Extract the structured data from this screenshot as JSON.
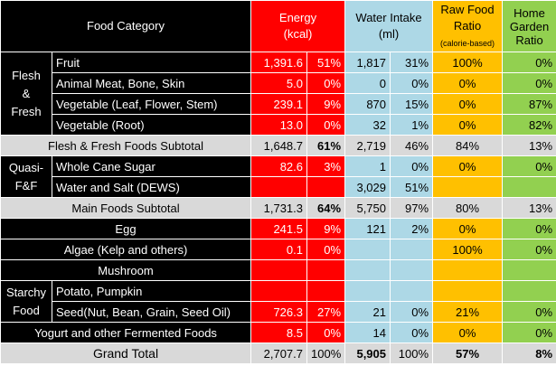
{
  "header": {
    "food_category": "Food Category",
    "energy_1": "Energy",
    "energy_2": "(kcal)",
    "water_1": "Water Intake",
    "water_2": "(ml)",
    "raw_1": "Raw Food",
    "raw_2": "Ratio",
    "raw_3": "(calorie-based)",
    "home_1": "Home",
    "home_2": "Garden",
    "home_3": "Ratio"
  },
  "groups": {
    "flesh_1": "Flesh",
    "flesh_2": "&",
    "flesh_3": "Fresh",
    "quasi_1": "Quasi-",
    "quasi_2": "F&F",
    "starchy_1": "Starchy",
    "starchy_2": "Food"
  },
  "rows": {
    "fruit": {
      "name": "Fruit",
      "kcal": "1,391.6",
      "kpct": "51%",
      "water": "1,817",
      "wpct": "31%",
      "raw": "100%",
      "home": "0%"
    },
    "meat": {
      "name": "Animal Meat, Bone, Skin",
      "kcal": "5.0",
      "kpct": "0%",
      "water": "0",
      "wpct": "0%",
      "raw": "0%",
      "home": "0%"
    },
    "vleaf": {
      "name": "Vegetable (Leaf, Flower, Stem)",
      "kcal": "239.1",
      "kpct": "9%",
      "water": "870",
      "wpct": "15%",
      "raw": "0%",
      "home": "87%"
    },
    "vroot": {
      "name": "Vegetable (Root)",
      "kcal": "13.0",
      "kpct": "0%",
      "water": "32",
      "wpct": "1%",
      "raw": "0%",
      "home": "82%"
    },
    "sub1": {
      "name": "Flesh & Fresh Foods Subtotal",
      "kcal": "1,648.7",
      "kpct": "61%",
      "water": "2,719",
      "wpct": "46%",
      "raw": "84%",
      "home": "13%"
    },
    "sugar": {
      "name": "Whole Cane Sugar",
      "kcal": "82.6",
      "kpct": "3%",
      "water": "1",
      "wpct": "0%",
      "raw": "0%",
      "home": "0%"
    },
    "salt": {
      "name": "Water and Salt (DEWS)",
      "kcal": "",
      "kpct": "",
      "water": "3,029",
      "wpct": "51%",
      "raw": "",
      "home": ""
    },
    "main": {
      "name": "Main Foods Subtotal",
      "kcal": "1,731.3",
      "kpct": "64%",
      "water": "5,750",
      "wpct": "97%",
      "raw": "80%",
      "home": "13%"
    },
    "egg": {
      "name": "Egg",
      "kcal": "241.5",
      "kpct": "9%",
      "water": "121",
      "wpct": "2%",
      "raw": "0%",
      "home": "0%"
    },
    "algae": {
      "name": "Algae (Kelp and others)",
      "kcal": "0.1",
      "kpct": "0%",
      "water": "",
      "wpct": "",
      "raw": "100%",
      "home": "0%"
    },
    "mush": {
      "name": "Mushroom",
      "kcal": "",
      "kpct": "",
      "water": "",
      "wpct": "",
      "raw": "",
      "home": ""
    },
    "potato": {
      "name": "Potato, Pumpkin",
      "kcal": "",
      "kpct": "",
      "water": "",
      "wpct": "",
      "raw": "",
      "home": ""
    },
    "seed": {
      "name": "Seed(Nut, Bean, Grain, Seed Oil)",
      "kcal": "726.3",
      "kpct": "27%",
      "water": "21",
      "wpct": "0%",
      "raw": "21%",
      "home": "0%"
    },
    "yogurt": {
      "name": "Yogurt and other Fermented Foods",
      "kcal": "8.5",
      "kpct": "0%",
      "water": "14",
      "wpct": "0%",
      "raw": "0%",
      "home": "0%"
    },
    "grand": {
      "name": "Grand Total",
      "kcal": "2,707.7",
      "kpct": "100%",
      "water": "5,905",
      "wpct": "100%",
      "raw": "57%",
      "home": "8%"
    }
  }
}
